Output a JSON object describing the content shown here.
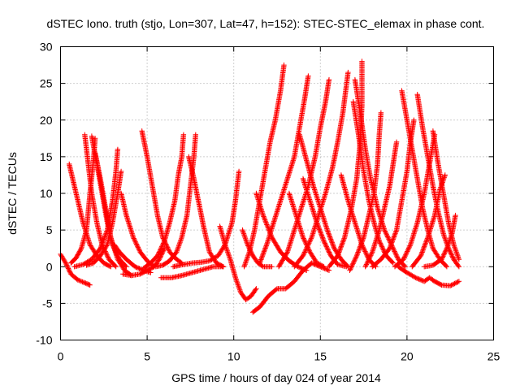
{
  "chart_data": {
    "type": "scatter",
    "title": "dSTEC Iono. truth (stjo, Lon=307, Lat=47, h=152): STEC-STEC_elemax in phase cont.",
    "xlabel": "GPS time / hours of day 024 of year 2014",
    "ylabel": "dSTEC  / TECUs",
    "xlim": [
      0,
      25
    ],
    "ylim": [
      -10,
      30
    ],
    "x_ticks": [
      "0",
      "5",
      "10",
      "15",
      "20",
      "25"
    ],
    "y_ticks": [
      "-10",
      "-5",
      "0",
      "5",
      "10",
      "15",
      "20",
      "25",
      "30"
    ],
    "grid": true,
    "legend": "none",
    "marker": "plus",
    "colors": {
      "series": "#ff0000"
    },
    "arcs": [
      [
        [
          0.0,
          1.7
        ],
        [
          0.3,
          0.5
        ],
        [
          0.6,
          -1.0
        ],
        [
          1.0,
          -1.8
        ],
        [
          1.4,
          -2.2
        ],
        [
          1.7,
          -2.5
        ]
      ],
      [
        [
          0.5,
          14.0
        ],
        [
          0.9,
          10.0
        ],
        [
          1.3,
          6.0
        ],
        [
          1.7,
          3.0
        ],
        [
          2.1,
          1.5
        ],
        [
          2.5,
          0.5
        ],
        [
          2.9,
          0.0
        ]
      ],
      [
        [
          0.6,
          0.5
        ],
        [
          0.9,
          1.2
        ],
        [
          1.2,
          2.5
        ],
        [
          1.5,
          5.0
        ],
        [
          1.7,
          10.0
        ],
        [
          1.9,
          14.5
        ],
        [
          2.0,
          17.5
        ]
      ],
      [
        [
          1.4,
          18.0
        ],
        [
          1.6,
          14.0
        ],
        [
          1.8,
          10.0
        ],
        [
          2.1,
          6.0
        ],
        [
          2.4,
          3.0
        ],
        [
          2.8,
          1.0
        ],
        [
          3.2,
          0.0
        ]
      ],
      [
        [
          1.5,
          0.2
        ],
        [
          1.9,
          0.5
        ],
        [
          2.3,
          1.5
        ],
        [
          2.7,
          3.0
        ],
        [
          3.0,
          6.0
        ],
        [
          3.3,
          10.0
        ],
        [
          3.5,
          13.0
        ]
      ],
      [
        [
          1.8,
          17.8
        ],
        [
          2.1,
          14.0
        ],
        [
          2.4,
          10.0
        ],
        [
          2.7,
          6.0
        ],
        [
          3.0,
          3.0
        ],
        [
          3.4,
          1.0
        ],
        [
          3.8,
          0.0
        ]
      ],
      [
        [
          2.0,
          15.5
        ],
        [
          2.3,
          12.0
        ],
        [
          2.6,
          8.0
        ],
        [
          2.9,
          4.0
        ],
        [
          3.3,
          1.0
        ],
        [
          3.7,
          -0.5
        ],
        [
          4.1,
          -1.2
        ]
      ],
      [
        [
          0.8,
          0.0
        ],
        [
          1.3,
          0.3
        ],
        [
          1.8,
          1.0
        ],
        [
          2.3,
          2.5
        ],
        [
          2.7,
          5.0
        ],
        [
          3.0,
          9.0
        ],
        [
          3.2,
          13.0
        ],
        [
          3.3,
          16.0
        ]
      ],
      [
        [
          3.1,
          3.0
        ],
        [
          3.4,
          2.0
        ],
        [
          3.8,
          1.0
        ],
        [
          4.3,
          0.0
        ],
        [
          4.8,
          -0.5
        ],
        [
          5.2,
          -0.8
        ]
      ],
      [
        [
          3.5,
          10.0
        ],
        [
          3.8,
          7.0
        ],
        [
          4.2,
          4.0
        ],
        [
          4.6,
          2.0
        ],
        [
          5.0,
          0.8
        ],
        [
          5.4,
          0.0
        ]
      ],
      [
        [
          3.6,
          -1.0
        ],
        [
          4.1,
          -1.2
        ],
        [
          4.6,
          -1.0
        ],
        [
          5.0,
          -0.5
        ],
        [
          5.4,
          0.0
        ],
        [
          5.7,
          1.0
        ],
        [
          6.0,
          2.5
        ]
      ],
      [
        [
          4.7,
          18.5
        ],
        [
          5.0,
          15.0
        ],
        [
          5.3,
          11.0
        ],
        [
          5.6,
          7.0
        ],
        [
          5.9,
          4.0
        ],
        [
          6.3,
          2.0
        ],
        [
          6.7,
          1.0
        ],
        [
          7.0,
          0.5
        ]
      ],
      [
        [
          4.8,
          -0.2
        ],
        [
          5.2,
          0.5
        ],
        [
          5.6,
          1.5
        ],
        [
          6.0,
          3.5
        ],
        [
          6.3,
          6.0
        ],
        [
          6.6,
          9.0
        ],
        [
          6.8,
          12.5
        ],
        [
          7.0,
          15.0
        ],
        [
          7.1,
          18.0
        ]
      ],
      [
        [
          5.5,
          0.0
        ],
        [
          5.9,
          0.2
        ],
        [
          6.3,
          0.8
        ],
        [
          6.7,
          2.0
        ],
        [
          7.0,
          4.0
        ],
        [
          7.3,
          7.0
        ],
        [
          7.5,
          11.0
        ],
        [
          7.7,
          15.0
        ],
        [
          7.8,
          18.0
        ]
      ],
      [
        [
          5.8,
          -1.5
        ],
        [
          6.4,
          -1.5
        ],
        [
          7.0,
          -1.2
        ],
        [
          7.6,
          -0.8
        ],
        [
          8.2,
          -0.4
        ],
        [
          8.8,
          0.0
        ],
        [
          9.4,
          0.0
        ]
      ],
      [
        [
          7.4,
          15.0
        ],
        [
          7.7,
          12.0
        ],
        [
          8.0,
          8.5
        ],
        [
          8.3,
          5.0
        ],
        [
          8.6,
          2.0
        ],
        [
          9.0,
          0.5
        ],
        [
          9.4,
          0.0
        ]
      ],
      [
        [
          6.5,
          0.0
        ],
        [
          7.1,
          0.3
        ],
        [
          7.6,
          0.5
        ],
        [
          8.1,
          0.6
        ],
        [
          8.6,
          0.8
        ],
        [
          9.1,
          1.5
        ],
        [
          9.5,
          3.0
        ],
        [
          9.9,
          6.0
        ],
        [
          10.1,
          9.0
        ],
        [
          10.3,
          13.0
        ]
      ],
      [
        [
          9.2,
          5.5
        ],
        [
          9.5,
          3.0
        ],
        [
          9.8,
          1.0
        ],
        [
          10.1,
          -1.5
        ],
        [
          10.4,
          -3.5
        ],
        [
          10.7,
          -4.5
        ],
        [
          11.0,
          -4.0
        ],
        [
          11.3,
          -3.0
        ]
      ],
      [
        [
          10.5,
          5.0
        ],
        [
          10.8,
          3.0
        ],
        [
          11.1,
          1.5
        ],
        [
          11.4,
          0.5
        ],
        [
          11.7,
          0.0
        ],
        [
          12.2,
          0.0
        ]
      ],
      [
        [
          11.1,
          -6.2
        ],
        [
          11.5,
          -5.5
        ],
        [
          12.0,
          -4.0
        ],
        [
          12.5,
          -3.0
        ],
        [
          13.0,
          -3.0
        ],
        [
          13.5,
          -2.0
        ],
        [
          14.0,
          -0.5
        ],
        [
          14.5,
          0.5
        ],
        [
          15.0,
          0.0
        ],
        [
          15.5,
          -0.5
        ]
      ],
      [
        [
          11.3,
          10.0
        ],
        [
          11.7,
          7.0
        ],
        [
          12.2,
          4.0
        ],
        [
          12.7,
          2.0
        ],
        [
          13.2,
          0.8
        ],
        [
          13.7,
          0.0
        ],
        [
          14.2,
          -0.5
        ]
      ],
      [
        [
          10.6,
          0.0
        ],
        [
          10.9,
          2.0
        ],
        [
          11.2,
          5.0
        ],
        [
          11.5,
          9.0
        ],
        [
          11.8,
          13.0
        ],
        [
          12.1,
          17.0
        ],
        [
          12.4,
          20.0
        ],
        [
          12.7,
          24.0
        ],
        [
          12.9,
          27.5
        ]
      ],
      [
        [
          11.5,
          0.5
        ],
        [
          11.9,
          3.0
        ],
        [
          12.3,
          6.0
        ],
        [
          12.7,
          9.0
        ],
        [
          13.1,
          12.0
        ],
        [
          13.5,
          15.0
        ],
        [
          13.8,
          19.0
        ],
        [
          14.1,
          23.0
        ],
        [
          14.3,
          26.0
        ]
      ],
      [
        [
          12.6,
          0.0
        ],
        [
          13.1,
          2.0
        ],
        [
          13.5,
          5.0
        ],
        [
          13.9,
          8.0
        ],
        [
          14.3,
          11.0
        ],
        [
          14.7,
          15.0
        ],
        [
          15.0,
          19.0
        ],
        [
          15.3,
          22.5
        ],
        [
          15.5,
          25.5
        ]
      ],
      [
        [
          13.5,
          0.0
        ],
        [
          14.0,
          1.5
        ],
        [
          14.5,
          4.0
        ],
        [
          14.9,
          7.0
        ],
        [
          15.3,
          10.0
        ],
        [
          15.7,
          13.5
        ],
        [
          16.0,
          17.0
        ],
        [
          16.3,
          21.0
        ],
        [
          16.6,
          26.5
        ]
      ],
      [
        [
          13.2,
          10.0
        ],
        [
          13.6,
          7.0
        ],
        [
          14.0,
          4.0
        ],
        [
          14.4,
          2.0
        ],
        [
          14.8,
          0.5
        ],
        [
          15.2,
          0.0
        ]
      ],
      [
        [
          13.8,
          18.0
        ],
        [
          14.2,
          14.5
        ],
        [
          14.6,
          11.0
        ],
        [
          15.0,
          8.0
        ],
        [
          15.4,
          5.0
        ],
        [
          15.8,
          2.5
        ],
        [
          16.2,
          1.0
        ],
        [
          16.6,
          0.0
        ]
      ],
      [
        [
          14.0,
          12.0
        ],
        [
          14.4,
          9.0
        ],
        [
          14.8,
          6.0
        ],
        [
          15.2,
          3.5
        ],
        [
          15.6,
          1.5
        ],
        [
          16.0,
          0.3
        ],
        [
          16.5,
          0.0
        ]
      ],
      [
        [
          16.2,
          12.5
        ],
        [
          16.6,
          9.0
        ],
        [
          17.0,
          6.0
        ],
        [
          17.4,
          3.0
        ],
        [
          17.8,
          1.0
        ],
        [
          18.2,
          0.0
        ]
      ],
      [
        [
          15.5,
          0.0
        ],
        [
          16.0,
          1.5
        ],
        [
          16.4,
          4.0
        ],
        [
          16.8,
          8.0
        ],
        [
          17.1,
          12.0
        ],
        [
          17.3,
          17.0
        ],
        [
          17.4,
          22.0
        ],
        [
          17.4,
          28.0
        ]
      ],
      [
        [
          16.7,
          -0.5
        ],
        [
          17.1,
          1.5
        ],
        [
          17.5,
          4.0
        ],
        [
          17.8,
          7.0
        ],
        [
          18.1,
          10.0
        ],
        [
          18.3,
          14.0
        ],
        [
          18.4,
          18.0
        ],
        [
          18.5,
          21.0
        ]
      ],
      [
        [
          16.9,
          22.5
        ],
        [
          17.2,
          18.0
        ],
        [
          17.5,
          13.0
        ],
        [
          17.8,
          9.0
        ],
        [
          18.1,
          6.0
        ],
        [
          18.4,
          3.5
        ],
        [
          18.8,
          1.5
        ],
        [
          19.2,
          0.5
        ]
      ],
      [
        [
          17.0,
          25.5
        ],
        [
          17.3,
          21.0
        ],
        [
          17.6,
          16.0
        ],
        [
          17.9,
          12.0
        ],
        [
          18.3,
          8.0
        ],
        [
          18.7,
          5.0
        ],
        [
          19.1,
          3.0
        ],
        [
          19.5,
          1.0
        ],
        [
          19.9,
          0.0
        ]
      ],
      [
        [
          17.6,
          0.0
        ],
        [
          18.0,
          2.0
        ],
        [
          18.4,
          5.0
        ],
        [
          18.7,
          8.0
        ],
        [
          19.0,
          11.0
        ],
        [
          19.2,
          14.0
        ],
        [
          19.4,
          17.0
        ]
      ],
      [
        [
          18.0,
          0.0
        ],
        [
          18.5,
          1.0
        ],
        [
          19.0,
          2.5
        ],
        [
          19.4,
          5.0
        ],
        [
          19.7,
          9.0
        ],
        [
          20.0,
          13.0
        ],
        [
          20.2,
          17.0
        ],
        [
          20.4,
          20.0
        ]
      ],
      [
        [
          19.7,
          24.0
        ],
        [
          20.0,
          20.0
        ],
        [
          20.3,
          16.0
        ],
        [
          20.6,
          12.0
        ],
        [
          20.9,
          8.0
        ],
        [
          21.2,
          5.0
        ],
        [
          21.5,
          2.5
        ],
        [
          21.9,
          1.0
        ],
        [
          22.3,
          0.0
        ]
      ],
      [
        [
          20.6,
          23.5
        ],
        [
          20.9,
          19.0
        ],
        [
          21.2,
          15.0
        ],
        [
          21.5,
          11.0
        ],
        [
          21.8,
          7.5
        ],
        [
          22.1,
          4.5
        ],
        [
          22.4,
          2.5
        ],
        [
          22.7,
          1.0
        ],
        [
          23.0,
          0.0
        ]
      ],
      [
        [
          19.3,
          0.0
        ],
        [
          19.8,
          1.0
        ],
        [
          20.2,
          3.0
        ],
        [
          20.6,
          6.0
        ],
        [
          21.0,
          10.0
        ],
        [
          21.3,
          14.0
        ],
        [
          21.6,
          18.0
        ]
      ],
      [
        [
          20.3,
          0.0
        ],
        [
          20.8,
          1.5
        ],
        [
          21.2,
          4.0
        ],
        [
          21.6,
          7.0
        ],
        [
          21.9,
          10.5
        ],
        [
          22.2,
          12.5
        ]
      ],
      [
        [
          21.5,
          18.5
        ],
        [
          21.8,
          14.0
        ],
        [
          22.1,
          10.0
        ],
        [
          22.4,
          6.0
        ],
        [
          22.7,
          3.0
        ],
        [
          23.0,
          1.0
        ]
      ],
      [
        [
          19.5,
          0.0
        ],
        [
          20.0,
          -0.8
        ],
        [
          20.5,
          -1.5
        ],
        [
          21.0,
          -2.0
        ],
        [
          21.3,
          -1.5
        ],
        [
          21.6,
          -2.0
        ],
        [
          22.0,
          -2.5
        ],
        [
          22.5,
          -2.6
        ],
        [
          23.0,
          -2.0
        ]
      ],
      [
        [
          21.0,
          0.0
        ],
        [
          21.5,
          0.2
        ],
        [
          22.0,
          1.0
        ],
        [
          22.3,
          2.5
        ],
        [
          22.6,
          4.5
        ],
        [
          22.8,
          7.0
        ]
      ]
    ]
  }
}
